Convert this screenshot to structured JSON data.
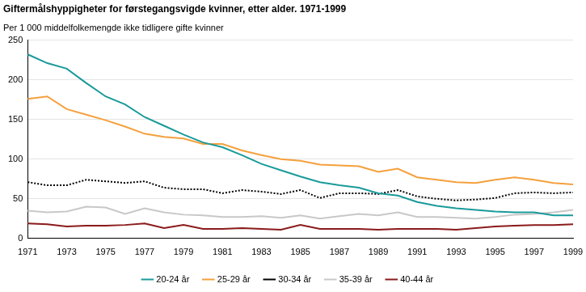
{
  "chart_data": {
    "type": "line",
    "title": "Giftermålshyppigheter for førstegangsvigde kvinner, etter alder. 1971-1999",
    "subtitle": "Per 1 000 middelfolkemengde ikke tidligere gifte kvinner",
    "categories": [
      "1971",
      null,
      "1973",
      null,
      "1975",
      null,
      "1977",
      null,
      "1979",
      null,
      "1981",
      null,
      "1983",
      null,
      "1985",
      null,
      "1987",
      null,
      "1989",
      null,
      "1991",
      null,
      "1993",
      null,
      "1995",
      null,
      "1997",
      null,
      "1999"
    ],
    "series": [
      {
        "name": "20-24 år",
        "color": "#1a9a9a",
        "line_style": "solid",
        "values": [
          232,
          221,
          214,
          196,
          179,
          169,
          153,
          142,
          131,
          121,
          115,
          105,
          94,
          86,
          78,
          71,
          67,
          64,
          57,
          54,
          46,
          41,
          38,
          36,
          34,
          33,
          33,
          29,
          29
        ]
      },
      {
        "name": "25-29 år",
        "color": "#f5a03c",
        "line_style": "solid",
        "values": [
          176,
          179,
          163,
          156,
          149,
          141,
          132,
          128,
          126,
          119,
          119,
          111,
          105,
          100,
          98,
          93,
          92,
          91,
          84,
          88,
          77,
          74,
          71,
          70,
          74,
          77,
          74,
          70,
          68
        ]
      },
      {
        "name": "30-34 år",
        "color": "#000000",
        "line_style": "dotted",
        "values": [
          71,
          67,
          67,
          74,
          72,
          70,
          72,
          64,
          62,
          62,
          57,
          61,
          59,
          56,
          61,
          51,
          57,
          57,
          56,
          61,
          53,
          50,
          48,
          49,
          51,
          57,
          58,
          57,
          58
        ]
      },
      {
        "name": "35-39 år",
        "color": "#c8c8c8",
        "line_style": "solid",
        "values": [
          35,
          33,
          34,
          40,
          39,
          31,
          38,
          33,
          30,
          29,
          27,
          27,
          28,
          26,
          29,
          25,
          28,
          31,
          29,
          33,
          27,
          27,
          26,
          25,
          27,
          30,
          31,
          33,
          36
        ]
      },
      {
        "name": "40-44 år",
        "color": "#8b1a1a",
        "line_style": "solid",
        "values": [
          19,
          18,
          15,
          16,
          16,
          17,
          19,
          13,
          17,
          12,
          12,
          13,
          12,
          11,
          17,
          12,
          12,
          12,
          11,
          12,
          12,
          12,
          11,
          13,
          15,
          16,
          17,
          17,
          18
        ]
      }
    ],
    "ylim": [
      0,
      250
    ],
    "yticks": [
      0,
      50,
      100,
      150,
      200,
      250
    ],
    "grid": true,
    "legend": "bottom"
  }
}
